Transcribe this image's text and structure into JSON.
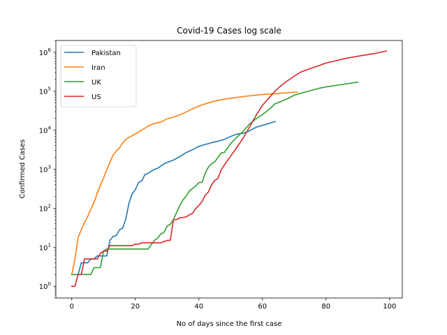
{
  "chart_data": {
    "type": "line",
    "title": "Covid-19 Cases log scale",
    "xlabel": "No of days since the first case",
    "ylabel": "Confirmed Cases",
    "xlim": [
      -5,
      104
    ],
    "ylim": [
      0.5,
      2000000
    ],
    "yscale": "log",
    "xticks": [
      0,
      20,
      40,
      60,
      80,
      100
    ],
    "yticks": [
      {
        "value": 1,
        "base": "10",
        "exp": "0"
      },
      {
        "value": 10,
        "base": "10",
        "exp": "1"
      },
      {
        "value": 100,
        "base": "10",
        "exp": "2"
      },
      {
        "value": 1000,
        "base": "10",
        "exp": "3"
      },
      {
        "value": 10000,
        "base": "10",
        "exp": "4"
      },
      {
        "value": 100000,
        "base": "10",
        "exp": "5"
      },
      {
        "value": 1000000,
        "base": "10",
        "exp": "6"
      }
    ],
    "grid": false,
    "legend_position": "top-left",
    "series": [
      {
        "name": "Pakistan",
        "color": "#1f77b4",
        "x": [
          0,
          2,
          3,
          4,
          5,
          6,
          7,
          8,
          9,
          10,
          11,
          12,
          13,
          14,
          15,
          16,
          17,
          18,
          19,
          20,
          21,
          22,
          23,
          24,
          25,
          26,
          27,
          28,
          29,
          30,
          32,
          34,
          36,
          38,
          40,
          42,
          44,
          46,
          48,
          50,
          52,
          54,
          56,
          58,
          60,
          62,
          64
        ],
        "y": [
          2,
          2,
          4,
          4,
          4,
          5,
          5,
          6,
          6,
          6,
          6,
          15,
          19,
          20,
          28,
          31,
          53,
          136,
          236,
          299,
          454,
          501,
          730,
          776,
          887,
          990,
          1057,
          1201,
          1373,
          1495,
          1717,
          2118,
          2686,
          3157,
          3864,
          4322,
          4788,
          5230,
          5837,
          6919,
          7993,
          8348,
          9749,
          11940,
          13328,
          14885,
          16817
        ]
      },
      {
        "name": "Iran",
        "color": "#ff7f0e",
        "x": [
          0,
          1,
          2,
          3,
          4,
          5,
          6,
          7,
          8,
          9,
          10,
          11,
          12,
          13,
          14,
          15,
          16,
          17,
          18,
          20,
          22,
          24,
          26,
          28,
          30,
          32,
          34,
          36,
          38,
          40,
          42,
          44,
          46,
          50,
          55,
          60,
          65,
          71
        ],
        "y": [
          2,
          5,
          18,
          28,
          43,
          61,
          95,
          139,
          245,
          388,
          593,
          978,
          1501,
          2336,
          2922,
          3513,
          4747,
          5823,
          6566,
          8042,
          10075,
          12729,
          14991,
          16169,
          19644,
          21638,
          24811,
          29406,
          35408,
          41495,
          47593,
          53183,
          58226,
          66220,
          74877,
          82211,
          88194,
          95646
        ]
      },
      {
        "name": "UK",
        "color": "#2ca02c",
        "x": [
          0,
          2,
          3,
          5,
          6,
          7,
          8,
          9,
          10,
          11,
          12,
          14,
          16,
          18,
          20,
          22,
          24,
          26,
          27,
          28,
          29,
          30,
          31,
          32,
          33,
          34,
          35,
          36,
          37,
          38,
          39,
          40,
          41,
          42,
          43,
          44,
          45,
          46,
          47,
          48,
          50,
          52,
          54,
          56,
          58,
          60,
          62,
          64,
          66,
          68,
          70,
          72,
          75,
          78,
          80,
          85,
          90
        ],
        "y": [
          2,
          2,
          2,
          2,
          2,
          3,
          3,
          3,
          8,
          9,
          9,
          9,
          9,
          9,
          9,
          9,
          9,
          15,
          17,
          22,
          24,
          35,
          39,
          51,
          79,
          116,
          164,
          206,
          278,
          321,
          373,
          456,
          460,
          798,
          1140,
          1391,
          1543,
          2016,
          2626,
          2689,
          4569,
          6727,
          9529,
          14579,
          19522,
          25150,
          33718,
          47806,
          55242,
          65077,
          78991,
          88621,
          103093,
          120067,
          129044,
          148377,
          171253
        ]
      },
      {
        "name": "US",
        "color": "#d62728",
        "x": [
          0,
          1,
          2,
          3,
          4,
          5,
          6,
          7,
          8,
          9,
          10,
          11,
          12,
          14,
          16,
          18,
          19,
          20,
          21,
          22,
          24,
          26,
          28,
          30,
          31,
          32,
          33,
          34,
          35,
          36,
          37,
          38,
          39,
          40,
          41,
          42,
          43,
          44,
          45,
          46,
          47,
          48,
          50,
          52,
          54,
          56,
          58,
          60,
          62,
          64,
          66,
          68,
          70,
          72,
          75,
          78,
          80,
          83,
          86,
          90,
          95,
          99
        ],
        "y": [
          1,
          1,
          2,
          2,
          5,
          5,
          5,
          5,
          5,
          7,
          8,
          8,
          11,
          11,
          11,
          11,
          11,
          12,
          12,
          13,
          13,
          13,
          13,
          15,
          15,
          51,
          51,
          57,
          58,
          60,
          68,
          74,
          98,
          118,
          149,
          217,
          262,
          402,
          518,
          583,
          959,
          1281,
          2179,
          3680,
          6421,
          12328,
          24148,
          43734,
          66132,
          101657,
          143055,
          188172,
          243453,
          308850,
          380000,
          460000,
          530000,
          600000,
          690000,
          790000,
          920000,
          1070000
        ]
      }
    ]
  }
}
